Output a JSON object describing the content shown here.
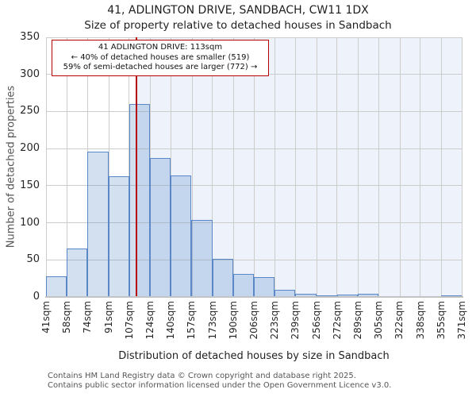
{
  "chart_data": {
    "type": "bar",
    "title": "41, ADLINGTON DRIVE, SANDBACH, CW11 1DX",
    "subtitle": "Size of property relative to detached houses in Sandbach",
    "xlabel": "Distribution of detached houses by size in Sandbach",
    "ylabel": "Number of detached properties",
    "x_tick_labels": [
      "41sqm",
      "58sqm",
      "74sqm",
      "91sqm",
      "107sqm",
      "124sqm",
      "140sqm",
      "157sqm",
      "173sqm",
      "190sqm",
      "206sqm",
      "223sqm",
      "239sqm",
      "256sqm",
      "272sqm",
      "289sqm",
      "305sqm",
      "322sqm",
      "338sqm",
      "355sqm",
      "371sqm"
    ],
    "bin_edges_sqm": [
      41,
      58,
      74,
      91,
      107,
      124,
      140,
      157,
      173,
      190,
      206,
      223,
      239,
      256,
      272,
      289,
      305,
      322,
      338,
      355,
      371
    ],
    "values": [
      28,
      65,
      196,
      163,
      260,
      187,
      164,
      104,
      51,
      31,
      27,
      10,
      4,
      2,
      3,
      4,
      0,
      0,
      0,
      2
    ],
    "ylim": [
      0,
      350
    ],
    "y_ticks": [
      0,
      50,
      100,
      150,
      200,
      250,
      300,
      350
    ],
    "grid": true,
    "legend": "none",
    "marker_line": {
      "x_sqm": 113
    },
    "shaded_region": {
      "from_sqm": 113,
      "to_sqm": 371
    },
    "annotation": {
      "line1": "41 ADLINGTON DRIVE: 113sqm",
      "line2": "← 40% of detached houses are smaller (519)",
      "line3": "59% of semi-detached houses are larger (772) →"
    },
    "colors": {
      "bar_fill": "rgba(76,130,196,0.25)",
      "bar_edge": "#5a87c8",
      "marker_line": "#b40000",
      "annotation_border": "#b40000",
      "shade": "#edf2fb",
      "grid": "#cccccc",
      "axis_line": "#c3c3c3"
    }
  },
  "footer": {
    "line1": "Contains HM Land Registry data © Crown copyright and database right 2025.",
    "line2": "Contains public sector information licensed under the Open Government Licence v3.0."
  }
}
